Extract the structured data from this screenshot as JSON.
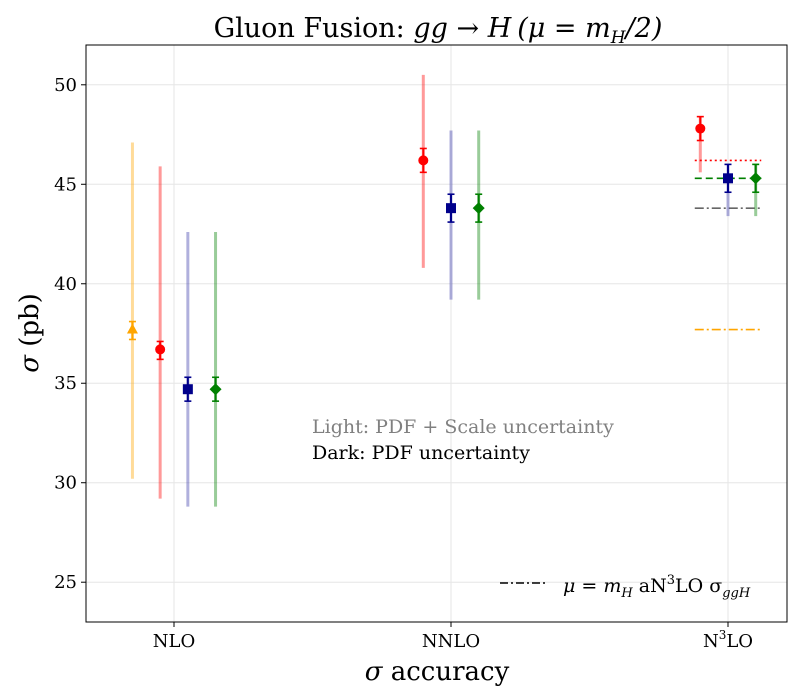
{
  "chart_data": {
    "type": "errorbar",
    "title": {
      "prefix": "Gluon Fusion: ",
      "process": "gg → H",
      "scale": "(μ = m",
      "scale_sub": "H",
      "scale_suffix": "/2)"
    },
    "xlabel": {
      "symbol": "σ",
      "text": " accuracy"
    },
    "ylabel": {
      "symbol": "σ",
      "text": " (pb)"
    },
    "ylim": [
      23,
      52
    ],
    "yticks": [
      "25",
      "30",
      "35",
      "40",
      "45",
      "50"
    ],
    "categories": [
      {
        "label": "NLO",
        "base": "NLO",
        "sup": ""
      },
      {
        "label": "NNLO",
        "base": "NNLO",
        "sup": ""
      },
      {
        "label": "N3LO",
        "base": "N",
        "sup": "3",
        "rest": "LO"
      }
    ],
    "series": [
      {
        "name": "series-orange",
        "color": "#ffa500",
        "marker": "triangle",
        "points": [
          {
            "category": "NLO",
            "value": 37.7,
            "pdf_low": 37.2,
            "pdf_high": 38.1,
            "total_low": 30.2,
            "total_high": 47.1
          }
        ]
      },
      {
        "name": "series-red",
        "color": "#ff0000",
        "marker": "circle",
        "points": [
          {
            "category": "NLO",
            "value": 36.7,
            "pdf_low": 36.2,
            "pdf_high": 37.1,
            "total_low": 29.2,
            "total_high": 45.9
          },
          {
            "category": "NNLO",
            "value": 46.2,
            "pdf_low": 45.6,
            "pdf_high": 46.8,
            "total_low": 40.8,
            "total_high": 50.5
          },
          {
            "category": "N3LO",
            "value": 47.8,
            "pdf_low": 47.2,
            "pdf_high": 48.4,
            "total_low": 45.6,
            "total_high": 48.4
          }
        ]
      },
      {
        "name": "series-blue",
        "color": "#00008b",
        "light_color": "#3a3aaa",
        "marker": "square",
        "points": [
          {
            "category": "NLO",
            "value": 34.7,
            "pdf_low": 34.1,
            "pdf_high": 35.3,
            "total_low": 28.8,
            "total_high": 42.6
          },
          {
            "category": "NNLO",
            "value": 43.8,
            "pdf_low": 43.1,
            "pdf_high": 44.5,
            "total_low": 39.2,
            "total_high": 47.7
          },
          {
            "category": "N3LO",
            "value": 45.3,
            "pdf_low": 44.6,
            "pdf_high": 46.0,
            "total_low": 43.4,
            "total_high": 46.0
          }
        ]
      },
      {
        "name": "series-green",
        "color": "#008000",
        "marker": "diamond",
        "points": [
          {
            "category": "NLO",
            "value": 34.7,
            "pdf_low": 34.1,
            "pdf_high": 35.3,
            "total_low": 28.8,
            "total_high": 42.6
          },
          {
            "category": "NNLO",
            "value": 43.8,
            "pdf_low": 43.1,
            "pdf_high": 44.5,
            "total_low": 39.2,
            "total_high": 47.7
          },
          {
            "category": "N3LO",
            "value": 45.3,
            "pdf_low": 44.6,
            "pdf_high": 46.0,
            "total_low": 43.4,
            "total_high": 46.0
          }
        ]
      }
    ],
    "reference_lines": [
      {
        "name": "red-dotted",
        "color": "#ff0000",
        "style": "dotted",
        "value": 46.2,
        "x_from": 2.88,
        "x_to": 3.12
      },
      {
        "name": "green-dashed",
        "color": "#008000",
        "style": "dashed",
        "value": 45.3,
        "x_from": 2.88,
        "x_to": 3.12
      },
      {
        "name": "gray-dashdot",
        "color": "#666666",
        "style": "dashdot",
        "value": 43.8,
        "x_from": 2.88,
        "x_to": 3.12
      },
      {
        "name": "orange-dashdot",
        "color": "#ffa500",
        "style": "dashdot",
        "value": 37.7,
        "x_from": 2.88,
        "x_to": 3.12
      }
    ],
    "annotations": {
      "light": "Light: PDF + Scale uncertainty",
      "dark": "Dark: PDF uncertainty",
      "light_color": "#808080",
      "dark_color": "#000000"
    },
    "legend": {
      "position": "bottom-right",
      "entries": [
        {
          "style": "dashdot",
          "color": "#000000",
          "label_prefix": "μ = m",
          "label_sub": "H",
          "label_mid": " aN",
          "label_sup": "3",
          "label_end": "LO σ",
          "label_sub2": "ggH"
        }
      ]
    },
    "grid": true
  }
}
